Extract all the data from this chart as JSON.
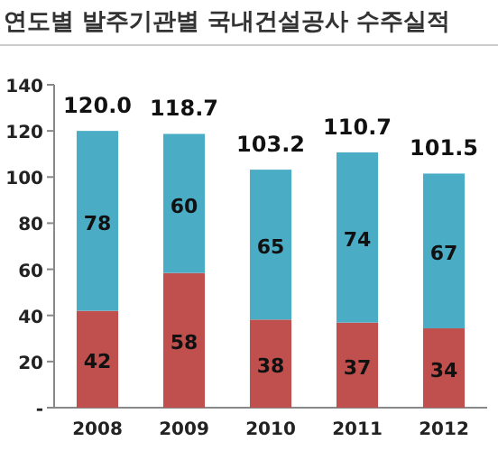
{
  "chart_data": {
    "type": "bar",
    "stacked": true,
    "title": "연도별 발주기관별 국내건설공사 수주실적",
    "categories": [
      "2008",
      "2009",
      "2010",
      "2011",
      "2012"
    ],
    "series": [
      {
        "color": "#c0504d",
        "values": [
          42.0,
          58.4,
          38.2,
          36.9,
          34.4
        ],
        "value_labels": [
          "42",
          "58",
          "38",
          "37",
          "34"
        ]
      },
      {
        "color": "#4bacc6",
        "values": [
          78.0,
          60.3,
          65.0,
          73.8,
          67.1
        ],
        "value_labels": [
          "78",
          "60",
          "65",
          "74",
          "67"
        ]
      }
    ],
    "totals": [
      "120.0",
      "118.7",
      "103.2",
      "110.7",
      "101.5"
    ],
    "ylim": [
      0,
      140
    ],
    "yticks": [
      {
        "value": 0,
        "label": "-"
      },
      20,
      40,
      60,
      80,
      100,
      120,
      140
    ],
    "grid": false
  }
}
